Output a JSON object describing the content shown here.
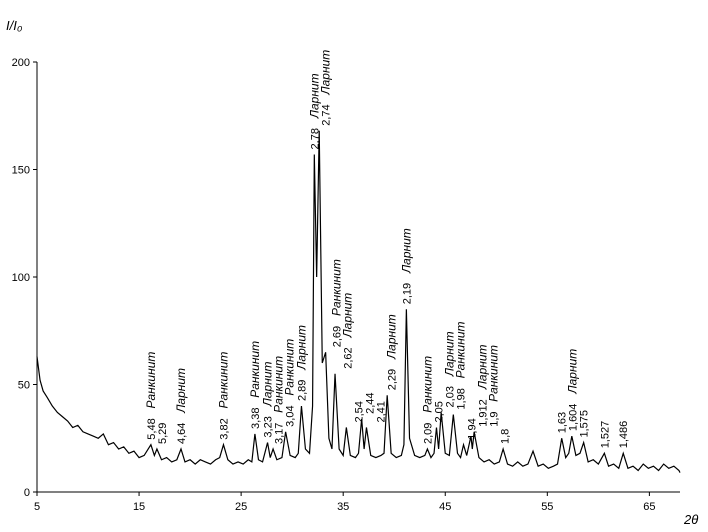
{
  "chart_data": {
    "type": "line",
    "y_label": "I/I₀",
    "x_label": "2θ",
    "x": [
      5,
      5.3,
      5.6,
      6,
      6.5,
      7,
      7.5,
      8,
      8.5,
      9,
      9.5,
      10,
      10.5,
      11,
      11.5,
      12,
      12.5,
      13,
      13.5,
      14,
      14.5,
      15,
      15.5,
      16.16,
      16.5,
      16.75,
      17.2,
      17.7,
      18.2,
      18.7,
      19.11,
      19.5,
      20,
      20.5,
      21,
      21.5,
      22,
      22.5,
      22.9,
      23.27,
      23.7,
      24.2,
      24.7,
      25.2,
      25.7,
      26.05,
      26.35,
      26.7,
      27.1,
      27.59,
      27.85,
      28.13,
      28.5,
      29,
      29.36,
      29.8,
      30.3,
      30.6,
      30.91,
      31.3,
      31.7,
      32,
      32.17,
      32.4,
      32.65,
      32.95,
      33.28,
      33.6,
      33.9,
      34.2,
      34.6,
      35,
      35.31,
      35.7,
      36.2,
      36.5,
      36.81,
      37.05,
      37.28,
      37.7,
      38.2,
      38.7,
      39,
      39.31,
      39.7,
      40.2,
      40.7,
      40.95,
      41.19,
      41.5,
      42,
      42.5,
      43,
      43.25,
      43.6,
      43.9,
      44.14,
      44.35,
      44.6,
      45,
      45.4,
      45.79,
      46.2,
      46.5,
      46.79,
      47.1,
      47.52,
      47.65,
      47.83,
      48.3,
      48.8,
      49.3,
      49.8,
      50.3,
      50.67,
      51.1,
      51.6,
      52.1,
      52.6,
      53.1,
      53.6,
      54.1,
      54.6,
      55.1,
      55.6,
      56,
      56.41,
      56.8,
      57.1,
      57.4,
      57.8,
      58.2,
      58.56,
      59,
      59.5,
      60,
      60.59,
      61,
      61.5,
      62,
      62.44,
      62.9,
      63.4,
      63.9,
      64.4,
      64.9,
      65.4,
      65.9,
      66.4,
      66.9,
      67.4,
      67.9,
      68
    ],
    "values": [
      63,
      52,
      47,
      44,
      40,
      37,
      35,
      33,
      30,
      31,
      28,
      27,
      26,
      25,
      27,
      22,
      23,
      20,
      21,
      18,
      19,
      16,
      17,
      22,
      17,
      20,
      15,
      16,
      14,
      15,
      20,
      14,
      15,
      13,
      15,
      14,
      13,
      15,
      16,
      22,
      15,
      13,
      14,
      13,
      15,
      14,
      27,
      15,
      14,
      23,
      16,
      20,
      15,
      16,
      28,
      17,
      16,
      18,
      40,
      20,
      18,
      40,
      157,
      100,
      168,
      60,
      65,
      25,
      20,
      55,
      20,
      17,
      30,
      17,
      16,
      18,
      34,
      20,
      30,
      17,
      16,
      17,
      18,
      45,
      18,
      16,
      17,
      22,
      85,
      25,
      17,
      16,
      17,
      20,
      16,
      18,
      30,
      20,
      37,
      18,
      17,
      36,
      18,
      16,
      22,
      17,
      26,
      20,
      28,
      16,
      14,
      15,
      13,
      14,
      20,
      13,
      12,
      14,
      12,
      13,
      19,
      12,
      13,
      11,
      12,
      13,
      25,
      16,
      18,
      26,
      17,
      18,
      23,
      14,
      15,
      13,
      18,
      12,
      13,
      11,
      18,
      11,
      12,
      10,
      13,
      11,
      12,
      10,
      13,
      11,
      12,
      10,
      9
    ],
    "color": "#000000",
    "xlim": [
      5,
      68
    ],
    "xticks": [
      5,
      15,
      25,
      35,
      45,
      55,
      65
    ],
    "ylim": [
      0,
      200
    ],
    "yticks": [
      0,
      50,
      100,
      150,
      200
    ],
    "grid": false,
    "annotations": [
      {
        "text": "5,48",
        "x": 16.16,
        "phase": "Ранкинит"
      },
      {
        "text": "5,29",
        "x": 16.75
      },
      {
        "text": "4,64",
        "x": 19.11,
        "phase": "Ларнит"
      },
      {
        "text": "3,82",
        "x": 23.27,
        "phase": "Ранкинит"
      },
      {
        "text": "3,38",
        "x": 26.35,
        "phase": "Ранкинит"
      },
      {
        "text": "3,23",
        "x": 27.59,
        "phase": "Ларнит"
      },
      {
        "text": "3,17",
        "x": 28.13,
        "phase": "Ранкинит"
      },
      {
        "text": "3,04",
        "x": 29.36,
        "phase": "Ранкинит"
      },
      {
        "text": "2,89",
        "x": 30.91,
        "phase": "Ларнит"
      },
      {
        "text": "2,78",
        "x": 32.17,
        "phase": "Ларнит"
      },
      {
        "text": "2,74",
        "x": 32.65,
        "phase": "Ларнит"
      },
      {
        "text": "2,69",
        "x": 33.28,
        "phase": "Ранкинит"
      },
      {
        "text": "2,62",
        "x": 34.2,
        "phase": "Ларнит"
      },
      {
        "text": "2,54",
        "x": 35.31
      },
      {
        "text": "2,44",
        "x": 36.81
      },
      {
        "text": "2,41",
        "x": 37.28
      },
      {
        "text": "2,29",
        "x": 39.31,
        "phase": "Ларнит"
      },
      {
        "text": "2,19",
        "x": 41.19,
        "phase": "Ларнит"
      },
      {
        "text": "2,09",
        "x": 43.25,
        "phase": "Ранкинит"
      },
      {
        "text": "2,05",
        "x": 44.14
      },
      {
        "text": "2,03",
        "x": 44.6,
        "phase": "Ларнит"
      },
      {
        "text": "1,98",
        "x": 45.79,
        "phase": "Ранкинит"
      },
      {
        "text": "1,94",
        "x": 46.79
      },
      {
        "text": "1,912",
        "x": 47.52,
        "phase": "Ларнит"
      },
      {
        "text": "1,9",
        "x": 47.83,
        "phase": "Ранкинит"
      },
      {
        "text": "1,8",
        "x": 50.67
      },
      {
        "text": "1,63",
        "x": 56.41
      },
      {
        "text": "1,604",
        "x": 57.4,
        "phase": "Ларнит"
      },
      {
        "text": "1,575",
        "x": 58.56
      },
      {
        "text": "1,527",
        "x": 60.59
      },
      {
        "text": "1,486",
        "x": 62.44
      }
    ]
  }
}
